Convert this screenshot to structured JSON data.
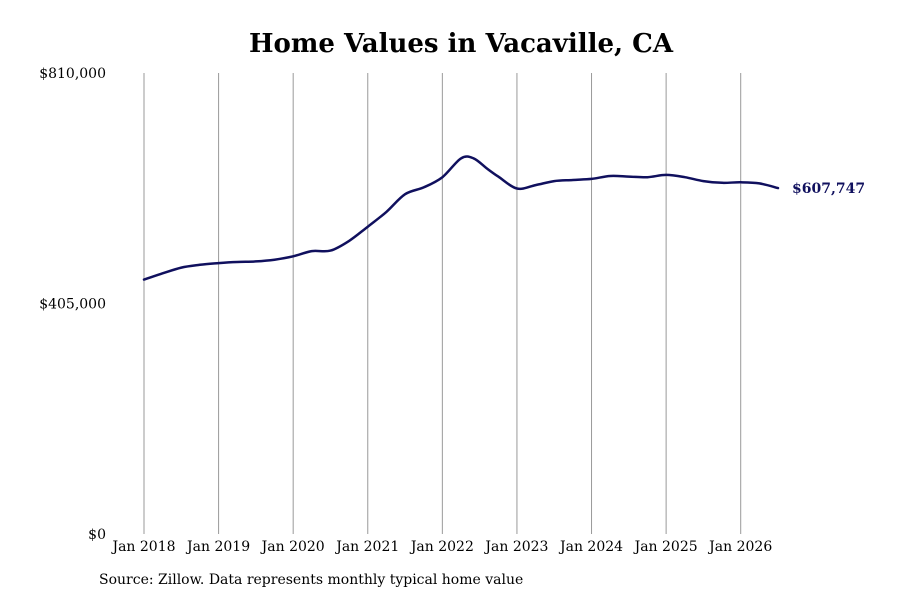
{
  "chart_data": {
    "type": "line",
    "title": "Home Values in Vacaville, CA",
    "xlabel": "",
    "ylabel": "",
    "ylim": [
      0,
      810000
    ],
    "yticks": [
      "$0",
      "$405,000",
      "$810,000"
    ],
    "ytick_values": [
      0,
      405000,
      810000
    ],
    "xticks": [
      "Jan 2018",
      "Jan 2019",
      "Jan 2020",
      "Jan 2021",
      "Jan 2022",
      "Jan 2023",
      "Jan 2024",
      "Jan 2025",
      "Jan 2026"
    ],
    "xtick_values": [
      2018,
      2019,
      2020,
      2021,
      2022,
      2023,
      2024,
      2025,
      2026
    ],
    "xlim": [
      2018,
      2026.5
    ],
    "grid": "vertical",
    "line_color": "#10105e",
    "end_label": "$607,747",
    "series": [
      {
        "x": [
          2018.0,
          2018.25,
          2018.5,
          2018.75,
          2019.0,
          2019.25,
          2019.5,
          2019.75,
          2020.0,
          2020.25,
          2020.5,
          2020.75,
          2021.0,
          2021.25,
          2021.5,
          2021.75,
          2022.0,
          2022.25,
          2022.42,
          2022.6,
          2022.75,
          2023.0,
          2023.25,
          2023.5,
          2023.75,
          2024.0,
          2024.25,
          2024.5,
          2024.75,
          2025.0,
          2025.25,
          2025.5,
          2025.75,
          2026.0,
          2026.25,
          2026.5
        ],
        "values": [
          447000,
          458000,
          468000,
          473000,
          476000,
          478000,
          479000,
          482000,
          488000,
          497000,
          498000,
          515000,
          540000,
          566000,
          597000,
          609000,
          627000,
          660000,
          660000,
          642000,
          628000,
          607000,
          613000,
          620000,
          622000,
          624000,
          629000,
          628000,
          627000,
          631000,
          627000,
          620000,
          617000,
          618000,
          616000,
          607747
        ]
      }
    ]
  },
  "footer": {
    "source": "Source: Zillow. Data represents monthly typical home value"
  }
}
